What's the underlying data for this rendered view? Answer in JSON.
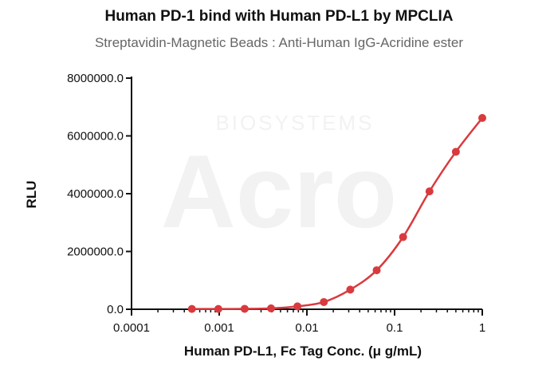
{
  "chart_data": {
    "type": "line",
    "title": "Human PD-1 bind with Human PD-L1 by MPCLIA",
    "subtitle": "Streptavidin-Magnetic Beads : Anti-Human IgG-Acridine ester",
    "xlabel": "Human PD-L1, Fc Tag Conc. (μ g/mL)",
    "ylabel": "RLU",
    "xscale": "log",
    "xlim": [
      0.0001,
      1
    ],
    "ylim": [
      0,
      8000000
    ],
    "x_ticks": [
      "0.0001",
      "0.001",
      "0.01",
      "0.1",
      "1"
    ],
    "y_ticks": [
      "0.0",
      "2000000.0",
      "4000000.0",
      "6000000.0",
      "8000000.0"
    ],
    "series": [
      {
        "color": "#d93a3e",
        "x": [
          0.000488,
          0.000977,
          0.00195,
          0.0039,
          0.0078,
          0.0156,
          0.03125,
          0.0625,
          0.125,
          0.25,
          0.5,
          1.0
        ],
        "values": [
          10000,
          10000,
          15000,
          30000,
          100000,
          250000,
          680000,
          1350000,
          2500000,
          4080000,
          5450000,
          6620000
        ]
      }
    ],
    "watermark": [
      "BIOSYSTEMS",
      "Acro"
    ]
  }
}
